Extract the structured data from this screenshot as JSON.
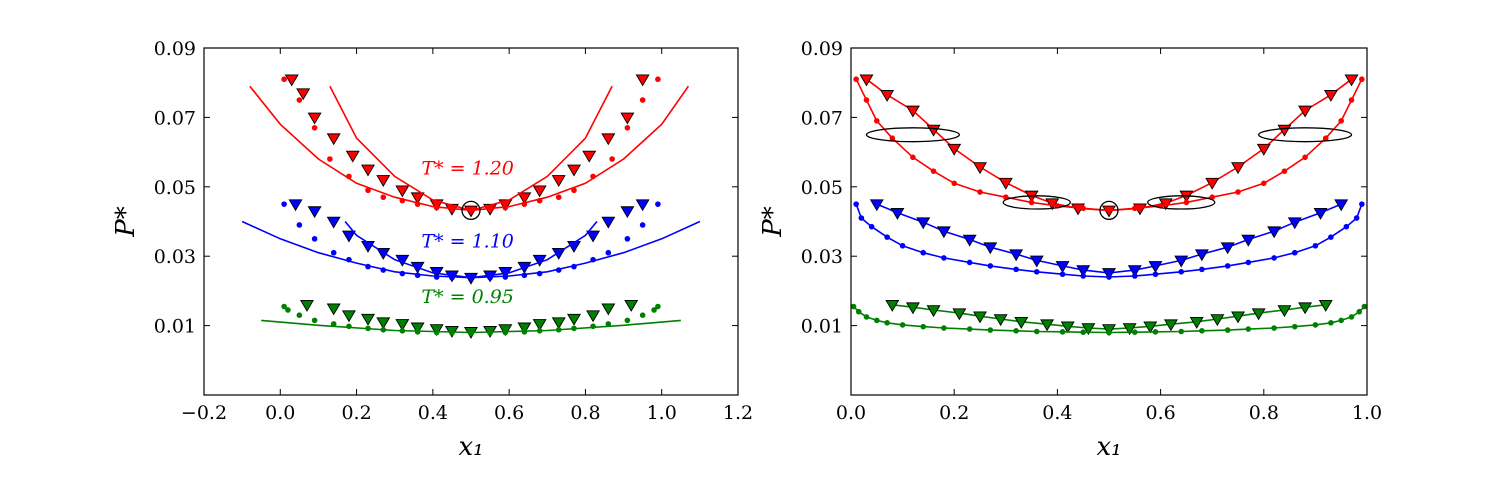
{
  "colors": {
    "red": "#ff0000",
    "blue": "#0000ff",
    "green": "#008000",
    "axis": "#000000"
  },
  "chart_data": [
    {
      "type": "scatter",
      "xlabel": "x₁",
      "ylabel": "P*",
      "xlim": [
        -0.2,
        1.2
      ],
      "ylim": [
        -0.01,
        0.09
      ],
      "x_ticks": [
        -0.2,
        0.0,
        0.2,
        0.4,
        0.6,
        0.8,
        1.0,
        1.2
      ],
      "x_tick_labels": [
        "−0.2",
        "0.0",
        "0.2",
        "0.4",
        "0.6",
        "0.8",
        "1.0",
        "1.2"
      ],
      "y_ticks": [
        0.01,
        0.03,
        0.05,
        0.07,
        0.09
      ],
      "y_tick_labels": [
        "0.01",
        "0.03",
        "0.05",
        "0.07",
        "0.09"
      ],
      "grid": false,
      "series": [
        {
          "color": "red",
          "marker": "triangle-down",
          "x": [
            0.03,
            0.06,
            0.09,
            0.14,
            0.19,
            0.23,
            0.27,
            0.32,
            0.36,
            0.41,
            0.45,
            0.5,
            0.55,
            0.59,
            0.64,
            0.68,
            0.73,
            0.77,
            0.81,
            0.86,
            0.91,
            0.95
          ],
          "y": [
            0.081,
            0.077,
            0.07,
            0.064,
            0.059,
            0.055,
            0.052,
            0.049,
            0.047,
            0.045,
            0.0437,
            0.0432,
            0.0437,
            0.045,
            0.047,
            0.049,
            0.052,
            0.055,
            0.059,
            0.064,
            0.07,
            0.081
          ]
        },
        {
          "color": "red",
          "marker": "dot",
          "x": [
            0.01,
            0.05,
            0.09,
            0.13,
            0.18,
            0.23,
            0.27,
            0.32,
            0.36,
            0.41,
            0.45,
            0.5,
            0.55,
            0.59,
            0.64,
            0.68,
            0.73,
            0.77,
            0.82,
            0.87,
            0.91,
            0.95,
            0.99
          ],
          "y": [
            0.081,
            0.075,
            0.067,
            0.058,
            0.053,
            0.049,
            0.047,
            0.046,
            0.045,
            0.044,
            0.0435,
            0.0432,
            0.0435,
            0.044,
            0.045,
            0.046,
            0.047,
            0.049,
            0.053,
            0.058,
            0.067,
            0.075,
            0.081
          ]
        },
        {
          "color": "red",
          "marker": "line",
          "x": [
            -0.08,
            0.0,
            0.1,
            0.2,
            0.3,
            0.4,
            0.5,
            0.6,
            0.7,
            0.8,
            0.9,
            1.0,
            1.07
          ],
          "y": [
            0.079,
            0.068,
            0.058,
            0.051,
            0.047,
            0.0443,
            0.0432,
            0.0443,
            0.047,
            0.051,
            0.058,
            0.068,
            0.079
          ]
        },
        {
          "color": "red",
          "marker": "line",
          "x": [
            0.13,
            0.2,
            0.3,
            0.4,
            0.5,
            0.6,
            0.7,
            0.8,
            0.87
          ],
          "y": [
            0.079,
            0.064,
            0.053,
            0.0462,
            0.0432,
            0.0462,
            0.053,
            0.064,
            0.079
          ]
        },
        {
          "color": "blue",
          "marker": "triangle-down",
          "x": [
            0.04,
            0.09,
            0.14,
            0.18,
            0.23,
            0.27,
            0.32,
            0.36,
            0.41,
            0.45,
            0.5,
            0.55,
            0.59,
            0.64,
            0.68,
            0.73,
            0.77,
            0.82,
            0.86,
            0.91,
            0.95
          ],
          "y": [
            0.045,
            0.043,
            0.04,
            0.036,
            0.033,
            0.031,
            0.029,
            0.027,
            0.0255,
            0.0245,
            0.0238,
            0.0245,
            0.0255,
            0.027,
            0.029,
            0.031,
            0.033,
            0.036,
            0.04,
            0.043,
            0.045
          ]
        },
        {
          "color": "blue",
          "marker": "dot",
          "x": [
            0.01,
            0.05,
            0.09,
            0.14,
            0.18,
            0.23,
            0.27,
            0.32,
            0.36,
            0.41,
            0.45,
            0.5,
            0.55,
            0.59,
            0.64,
            0.68,
            0.73,
            0.77,
            0.82,
            0.86,
            0.91,
            0.95,
            0.99
          ],
          "y": [
            0.045,
            0.039,
            0.035,
            0.031,
            0.029,
            0.027,
            0.026,
            0.025,
            0.0245,
            0.024,
            0.0238,
            0.0237,
            0.0238,
            0.024,
            0.0245,
            0.025,
            0.026,
            0.027,
            0.029,
            0.031,
            0.035,
            0.039,
            0.045
          ]
        },
        {
          "color": "blue",
          "marker": "line",
          "x": [
            -0.1,
            0.0,
            0.1,
            0.2,
            0.3,
            0.4,
            0.5,
            0.6,
            0.7,
            0.8,
            0.9,
            1.0,
            1.1
          ],
          "y": [
            0.04,
            0.035,
            0.031,
            0.028,
            0.0255,
            0.0243,
            0.0238,
            0.0243,
            0.0255,
            0.028,
            0.031,
            0.035,
            0.04
          ]
        },
        {
          "color": "blue",
          "marker": "line",
          "x": [
            0.17,
            0.2,
            0.3,
            0.4,
            0.5,
            0.6,
            0.7,
            0.8,
            0.83
          ],
          "y": [
            0.04,
            0.036,
            0.029,
            0.0252,
            0.0238,
            0.0252,
            0.029,
            0.036,
            0.04
          ]
        },
        {
          "color": "green",
          "marker": "triangle-down",
          "x": [
            0.07,
            0.14,
            0.18,
            0.23,
            0.27,
            0.32,
            0.36,
            0.41,
            0.45,
            0.5,
            0.55,
            0.59,
            0.64,
            0.68,
            0.73,
            0.77,
            0.82,
            0.86,
            0.92
          ],
          "y": [
            0.016,
            0.015,
            0.013,
            0.012,
            0.011,
            0.0105,
            0.0095,
            0.009,
            0.0085,
            0.0082,
            0.0085,
            0.009,
            0.0095,
            0.0105,
            0.011,
            0.012,
            0.013,
            0.015,
            0.016
          ]
        },
        {
          "color": "green",
          "marker": "dot",
          "x": [
            0.01,
            0.02,
            0.05,
            0.09,
            0.14,
            0.18,
            0.23,
            0.27,
            0.32,
            0.36,
            0.41,
            0.45,
            0.5,
            0.55,
            0.59,
            0.64,
            0.68,
            0.73,
            0.77,
            0.82,
            0.86,
            0.91,
            0.95,
            0.98,
            0.99
          ],
          "y": [
            0.0155,
            0.0145,
            0.013,
            0.0115,
            0.0105,
            0.0098,
            0.0092,
            0.0088,
            0.0085,
            0.0082,
            0.008,
            0.0079,
            0.0078,
            0.0079,
            0.008,
            0.0082,
            0.0085,
            0.0088,
            0.0092,
            0.0098,
            0.0105,
            0.0115,
            0.013,
            0.0145,
            0.0155
          ]
        },
        {
          "color": "green",
          "marker": "line",
          "x": [
            -0.05,
            0.1,
            0.3,
            0.5,
            0.7,
            0.9,
            1.05
          ],
          "y": [
            0.0115,
            0.0101,
            0.0086,
            0.008,
            0.0086,
            0.0101,
            0.0115
          ]
        }
      ],
      "annotations": [
        {
          "text": "T* = 1.20",
          "color": "red",
          "x": 0.37,
          "y": 0.0535
        },
        {
          "text": "T* = 1.10",
          "color": "blue",
          "x": 0.37,
          "y": 0.0325
        },
        {
          "text": "T* = 0.95",
          "color": "green",
          "x": 0.37,
          "y": 0.0165
        }
      ],
      "circles": [
        {
          "x": 0.5,
          "y": 0.0432
        }
      ]
    },
    {
      "type": "scatter",
      "xlabel": "x₁",
      "ylabel": "P*",
      "xlim": [
        0.0,
        1.0
      ],
      "ylim": [
        -0.01,
        0.09
      ],
      "x_ticks": [
        0.0,
        0.2,
        0.4,
        0.6,
        0.8,
        1.0
      ],
      "x_tick_labels": [
        "0.0",
        "0.2",
        "0.4",
        "0.6",
        "0.8",
        "1.0"
      ],
      "y_ticks": [
        0.01,
        0.03,
        0.05,
        0.07,
        0.09
      ],
      "y_tick_labels": [
        "0.01",
        "0.03",
        "0.05",
        "0.07",
        "0.09"
      ],
      "grid": false,
      "series": [
        {
          "color": "red",
          "marker": "triangle-down",
          "connected": true,
          "x": [
            0.03,
            0.07,
            0.12,
            0.16,
            0.2,
            0.25,
            0.3,
            0.35,
            0.39,
            0.44,
            0.5,
            0.56,
            0.61,
            0.65,
            0.7,
            0.75,
            0.8,
            0.84,
            0.88,
            0.93,
            0.97
          ],
          "y": [
            0.081,
            0.0765,
            0.072,
            0.0665,
            0.061,
            0.0557,
            0.0512,
            0.0475,
            0.0453,
            0.0438,
            0.0432,
            0.0438,
            0.0453,
            0.0475,
            0.0512,
            0.0557,
            0.061,
            0.0665,
            0.072,
            0.0765,
            0.081
          ]
        },
        {
          "color": "red",
          "marker": "dot",
          "connected": true,
          "x": [
            0.01,
            0.03,
            0.05,
            0.08,
            0.12,
            0.16,
            0.2,
            0.25,
            0.3,
            0.35,
            0.4,
            0.45,
            0.5,
            0.55,
            0.6,
            0.65,
            0.7,
            0.75,
            0.8,
            0.84,
            0.88,
            0.92,
            0.95,
            0.97,
            0.99
          ],
          "y": [
            0.081,
            0.075,
            0.069,
            0.064,
            0.0585,
            0.0545,
            0.051,
            0.0485,
            0.047,
            0.0455,
            0.0445,
            0.0438,
            0.0432,
            0.0438,
            0.0445,
            0.0455,
            0.047,
            0.0485,
            0.051,
            0.0545,
            0.0585,
            0.064,
            0.069,
            0.075,
            0.081
          ]
        },
        {
          "color": "blue",
          "marker": "triangle-down",
          "connected": true,
          "x": [
            0.05,
            0.09,
            0.14,
            0.18,
            0.23,
            0.27,
            0.32,
            0.36,
            0.41,
            0.45,
            0.5,
            0.55,
            0.59,
            0.64,
            0.68,
            0.73,
            0.77,
            0.82,
            0.86,
            0.91,
            0.95
          ],
          "y": [
            0.045,
            0.0425,
            0.0398,
            0.0372,
            0.0348,
            0.0326,
            0.0306,
            0.0288,
            0.0272,
            0.026,
            0.0252,
            0.026,
            0.0272,
            0.0288,
            0.0306,
            0.0326,
            0.0348,
            0.0372,
            0.0398,
            0.0425,
            0.045
          ]
        },
        {
          "color": "blue",
          "marker": "dot",
          "connected": true,
          "x": [
            0.01,
            0.02,
            0.04,
            0.07,
            0.1,
            0.14,
            0.18,
            0.23,
            0.27,
            0.32,
            0.36,
            0.41,
            0.45,
            0.5,
            0.55,
            0.59,
            0.64,
            0.68,
            0.73,
            0.77,
            0.82,
            0.86,
            0.9,
            0.93,
            0.96,
            0.98,
            0.99
          ],
          "y": [
            0.045,
            0.041,
            0.0385,
            0.0355,
            0.033,
            0.031,
            0.0295,
            0.0282,
            0.0272,
            0.0262,
            0.0255,
            0.0248,
            0.0243,
            0.024,
            0.0243,
            0.0248,
            0.0255,
            0.0262,
            0.0272,
            0.0282,
            0.0295,
            0.031,
            0.033,
            0.0355,
            0.0385,
            0.041,
            0.045
          ]
        },
        {
          "color": "green",
          "marker": "triangle-down",
          "connected": true,
          "x": [
            0.08,
            0.12,
            0.16,
            0.21,
            0.25,
            0.29,
            0.33,
            0.38,
            0.42,
            0.46,
            0.5,
            0.54,
            0.58,
            0.62,
            0.67,
            0.71,
            0.75,
            0.79,
            0.84,
            0.88,
            0.92
          ],
          "y": [
            0.016,
            0.0153,
            0.0145,
            0.0136,
            0.0127,
            0.0119,
            0.0111,
            0.0104,
            0.0098,
            0.0093,
            0.009,
            0.0093,
            0.0098,
            0.0104,
            0.0111,
            0.0119,
            0.0127,
            0.0136,
            0.0145,
            0.0153,
            0.016
          ]
        },
        {
          "color": "green",
          "marker": "dot",
          "connected": true,
          "x": [
            0.005,
            0.015,
            0.03,
            0.05,
            0.07,
            0.1,
            0.14,
            0.18,
            0.23,
            0.27,
            0.32,
            0.36,
            0.41,
            0.45,
            0.5,
            0.55,
            0.59,
            0.64,
            0.68,
            0.73,
            0.77,
            0.82,
            0.86,
            0.9,
            0.93,
            0.95,
            0.97,
            0.985,
            0.995
          ],
          "y": [
            0.0155,
            0.014,
            0.0125,
            0.0115,
            0.0108,
            0.0102,
            0.0097,
            0.0093,
            0.009,
            0.0087,
            0.0085,
            0.0083,
            0.0082,
            0.0081,
            0.008,
            0.0081,
            0.0082,
            0.0083,
            0.0085,
            0.0087,
            0.009,
            0.0093,
            0.0097,
            0.0102,
            0.0108,
            0.0115,
            0.0125,
            0.014,
            0.0155
          ]
        }
      ],
      "circles": [
        {
          "x": 0.5,
          "y": 0.0432
        }
      ],
      "ellipses": [
        {
          "x": 0.12,
          "y": 0.065,
          "rx": 0.09,
          "ry": 0.002
        },
        {
          "x": 0.88,
          "y": 0.065,
          "rx": 0.09,
          "ry": 0.002
        },
        {
          "x": 0.36,
          "y": 0.0455,
          "rx": 0.065,
          "ry": 0.0019
        },
        {
          "x": 0.64,
          "y": 0.0455,
          "rx": 0.065,
          "ry": 0.0019
        }
      ]
    }
  ]
}
